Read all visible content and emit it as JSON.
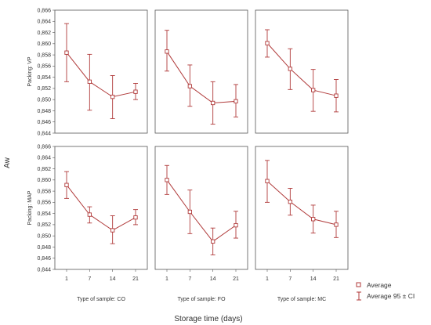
{
  "chart_data": {
    "type": "line",
    "ylabel": "Aw",
    "xlabel": "Storage time (days)",
    "x": [
      1,
      7,
      14,
      21
    ],
    "ylim": [
      0.844,
      0.866
    ],
    "yticks": [
      "0,844",
      "0,846",
      "0,848",
      "0,850",
      "0,852",
      "0,854",
      "0,856",
      "0,858",
      "0,860",
      "0,862",
      "0,864",
      "0,866"
    ],
    "rows": [
      "Packing: VP",
      "Packing: MAP"
    ],
    "columns": [
      "Type of sample: CO",
      "Type of sample: FO",
      "Type of sample: MC"
    ],
    "panels": [
      {
        "row": "Packing: VP",
        "column": "Type of sample: CO",
        "mean": [
          0.8584,
          0.8532,
          0.8505,
          0.8514
        ],
        "lower": [
          0.8532,
          0.8481,
          0.8466,
          0.85
        ],
        "upper": [
          0.8636,
          0.8581,
          0.8543,
          0.8529
        ]
      },
      {
        "row": "Packing: VP",
        "column": "Type of sample: FO",
        "mean": [
          0.8586,
          0.8524,
          0.8494,
          0.8497
        ],
        "lower": [
          0.8551,
          0.8488,
          0.8456,
          0.8469
        ],
        "upper": [
          0.8624,
          0.8562,
          0.8532,
          0.8527
        ]
      },
      {
        "row": "Packing: VP",
        "column": "Type of sample: MC",
        "mean": [
          0.8601,
          0.8555,
          0.8517,
          0.8507
        ],
        "lower": [
          0.8576,
          0.8518,
          0.8479,
          0.8478
        ],
        "upper": [
          0.8625,
          0.8591,
          0.8554,
          0.8536
        ]
      },
      {
        "row": "Packing: MAP",
        "column": "Type of sample: CO",
        "mean": [
          0.8591,
          0.8538,
          0.851,
          0.8533
        ],
        "lower": [
          0.8567,
          0.8523,
          0.8486,
          0.852
        ],
        "upper": [
          0.8615,
          0.8552,
          0.8536,
          0.8547
        ]
      },
      {
        "row": "Packing: MAP",
        "column": "Type of sample: FO",
        "mean": [
          0.86,
          0.8543,
          0.849,
          0.8519
        ],
        "lower": [
          0.8574,
          0.8504,
          0.8466,
          0.8496
        ],
        "upper": [
          0.8626,
          0.8582,
          0.8514,
          0.8544
        ]
      },
      {
        "row": "Packing: MAP",
        "column": "Type of sample: MC",
        "mean": [
          0.8598,
          0.8561,
          0.853,
          0.852
        ],
        "lower": [
          0.856,
          0.8537,
          0.8505,
          0.8497
        ],
        "upper": [
          0.8635,
          0.8585,
          0.8555,
          0.8544
        ]
      }
    ],
    "legend": {
      "position": "bottom-right",
      "items": [
        "Average",
        "Average 95 ± CI"
      ]
    },
    "grid": false,
    "line_color": "#b03a3a"
  }
}
